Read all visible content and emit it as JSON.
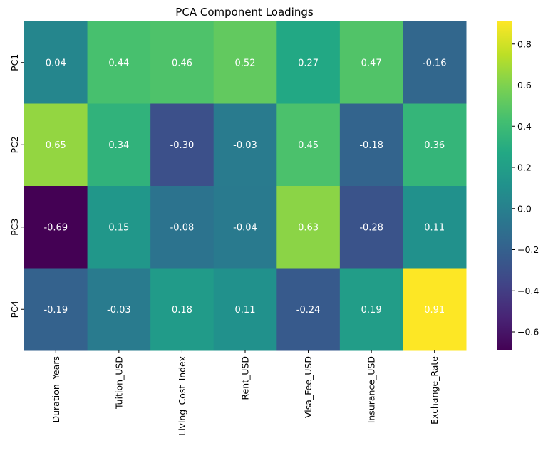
{
  "chart_data": {
    "type": "heatmap",
    "title": "PCA Component Loadings",
    "xlabel": "",
    "ylabel": "",
    "rows": [
      "PC1",
      "PC2",
      "PC3",
      "PC4"
    ],
    "columns": [
      "Duration_Years",
      "Tuition_USD",
      "Living_Cost_Index",
      "Rent_USD",
      "Visa_Fee_USD",
      "Insurance_USD",
      "Exchange_Rate"
    ],
    "values": [
      [
        0.04,
        0.44,
        0.46,
        0.52,
        0.27,
        0.47,
        -0.16
      ],
      [
        0.65,
        0.34,
        -0.3,
        -0.03,
        0.45,
        -0.18,
        0.36
      ],
      [
        -0.69,
        0.15,
        -0.08,
        -0.04,
        0.63,
        -0.28,
        0.11
      ],
      [
        -0.19,
        -0.03,
        0.18,
        0.11,
        -0.24,
        0.19,
        0.91
      ]
    ],
    "value_labels": [
      [
        "0.04",
        "0.44",
        "0.46",
        "0.52",
        "0.27",
        "0.47",
        "-0.16"
      ],
      [
        "0.65",
        "0.34",
        "-0.30",
        "-0.03",
        "0.45",
        "-0.18",
        "0.36"
      ],
      [
        "-0.69",
        "0.15",
        "-0.08",
        "-0.04",
        "0.63",
        "-0.28",
        "0.11"
      ],
      [
        "-0.19",
        "-0.03",
        "0.18",
        "0.11",
        "-0.24",
        "0.19",
        "0.91"
      ]
    ],
    "colormap": "viridis",
    "vmin": -0.69,
    "vmax": 0.91,
    "colorbar_ticks": [
      -0.6,
      -0.4,
      -0.2,
      0.0,
      0.2,
      0.4,
      0.6,
      0.8
    ],
    "colorbar_tick_labels": [
      "−0.6",
      "−0.4",
      "−0.2",
      "0.0",
      "0.2",
      "0.4",
      "0.6",
      "0.8"
    ],
    "colorbar_position": "right",
    "grid": false
  }
}
